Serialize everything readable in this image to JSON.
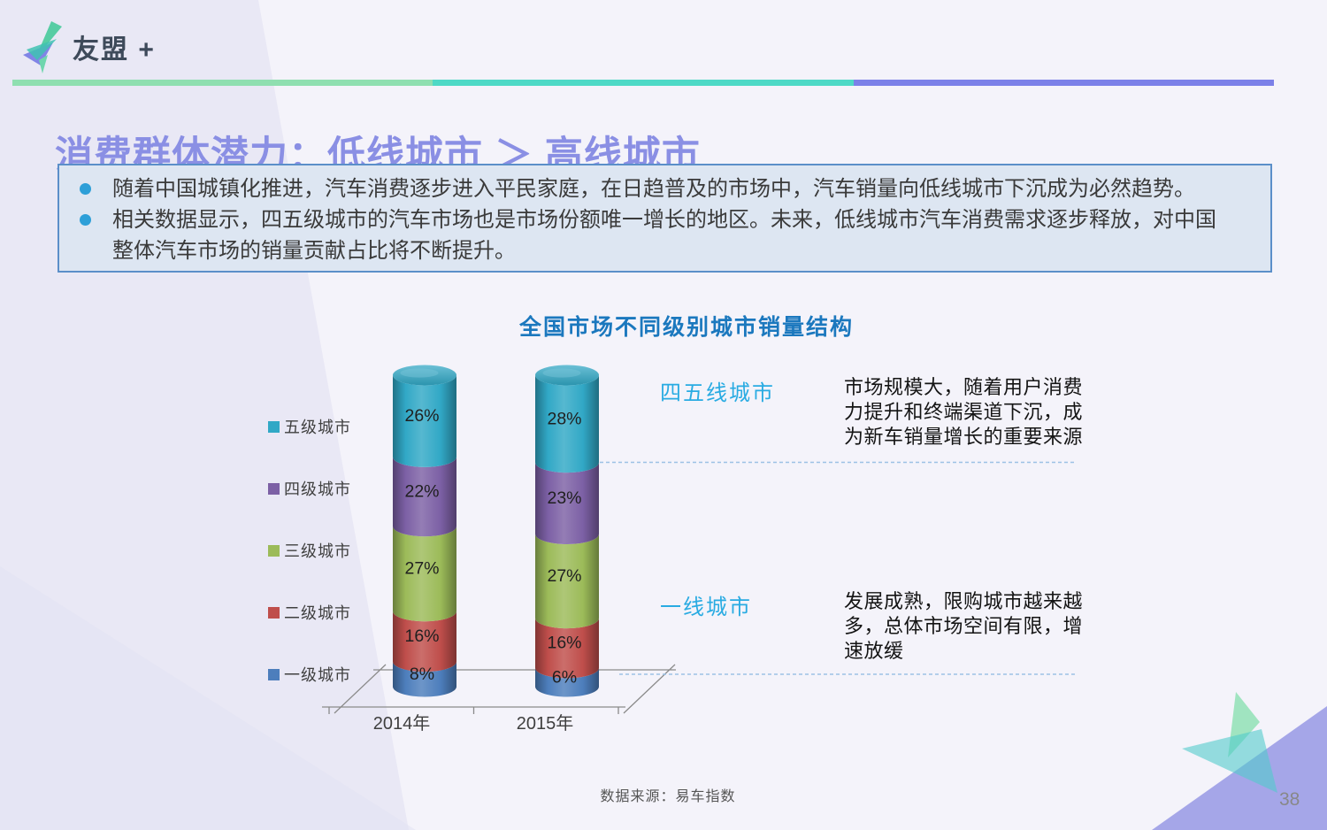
{
  "brand": {
    "logo_text": "友盟 +"
  },
  "header": {
    "title": "消费群体潜力：低线城市 ＞ 高线城市"
  },
  "bullets": [
    "随着中国城镇化推进，汽车消费逐步进入平民家庭，在日趋普及的市场中，汽车销量向低线城市下沉成为必然趋势。",
    "相关数据显示，四五级城市的汽车市场也是市场份额唯一增长的地区。未来，低线城市汽车消费需求逐步释放，对中国整体汽车市场的销量贡献占比将不断提升。"
  ],
  "chart_data": {
    "type": "bar",
    "subtype": "3d-stacked-cylinder",
    "title": "全国市场不同级别城市销量结构",
    "categories": [
      "2014年",
      "2015年"
    ],
    "series": [
      {
        "name": "一级城市",
        "color": "#4D7EBC",
        "values": [
          8,
          6
        ]
      },
      {
        "name": "二级城市",
        "color": "#BF4E4B",
        "values": [
          16,
          16
        ]
      },
      {
        "name": "三级城市",
        "color": "#9CBB59",
        "values": [
          27,
          27
        ]
      },
      {
        "name": "四级城市",
        "color": "#7C60A5",
        "values": [
          22,
          23
        ]
      },
      {
        "name": "五级城市",
        "color": "#31A8C6",
        "values": [
          26,
          28
        ]
      }
    ],
    "unit": "%",
    "stack_total": 100,
    "legend_position": "left",
    "legend_order_top_to_bottom": [
      "五级城市",
      "四级城市",
      "三级城市",
      "二级城市",
      "一级城市"
    ],
    "data_labels": "percent-inside"
  },
  "annotations": [
    {
      "label": "四五线城市",
      "text": "市场规模大，随着用户消费力提升和终端渠道下沉，成为新车销量增长的重要来源"
    },
    {
      "label": "一线城市",
      "text": "发展成熟，限购城市越来越多，总体市场空间有限，增速放缓"
    }
  ],
  "footer": {
    "source": "数据来源：易车指数",
    "page_number": "38"
  },
  "colors": {
    "accent_cyan": "#29ABE2",
    "title_purple": "#8A8FE4",
    "chart_title_blue": "#1B78BE",
    "topbar_green": "#8FDFB0",
    "topbar_teal": "#4ED9C6",
    "topbar_purple": "#7B80E8",
    "callout_bg": "#DDE6F2",
    "callout_border": "#5B8FC9",
    "dashed_line": "#9CC2E5",
    "corner_triangle": "#A5A6E8"
  }
}
